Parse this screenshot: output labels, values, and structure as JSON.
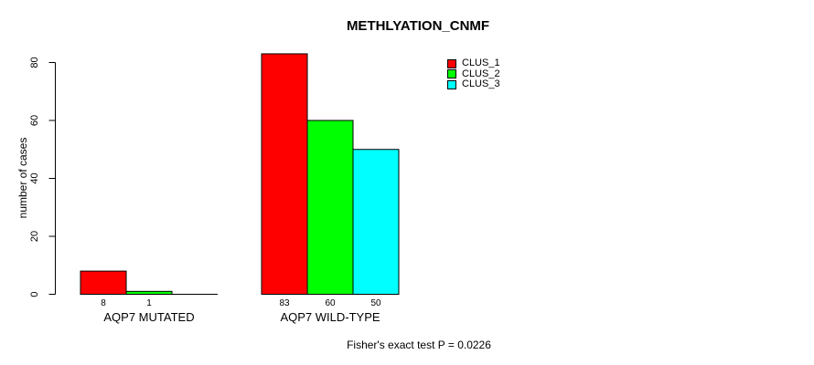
{
  "page": {
    "background_color": "#FFFFFF"
  },
  "chart_data": {
    "type": "bar",
    "title": "METHLYATION_CNMF",
    "ylabel": "number of cases",
    "xlabel": "",
    "ylim": [
      0,
      80
    ],
    "yticks": [
      0,
      20,
      40,
      60,
      80
    ],
    "categories": [
      "AQP7 MUTATED",
      "AQP7 WILD-TYPE"
    ],
    "series": [
      {
        "name": "CLUS_1",
        "color": "#FF0000",
        "values": [
          8,
          83
        ]
      },
      {
        "name": "CLUS_2",
        "color": "#00FF00",
        "values": [
          1,
          60
        ]
      },
      {
        "name": "CLUS_3",
        "color": "#00FFFF",
        "values": [
          0,
          50
        ]
      }
    ],
    "bar_value_labels": [
      [
        "8",
        "1",
        ""
      ],
      [
        "83",
        "60",
        "50"
      ]
    ],
    "legend": {
      "position": "top-right",
      "items": [
        {
          "label": "CLUS_1",
          "color": "#FF0000"
        },
        {
          "label": "CLUS_2",
          "color": "#00FF00"
        },
        {
          "label": "CLUS_3",
          "color": "#00FFFF"
        }
      ]
    },
    "grid": false,
    "axis_color": "#000000",
    "bar_border_color": "#000000",
    "annotation": "Fisher's exact test P = 0.0226"
  }
}
